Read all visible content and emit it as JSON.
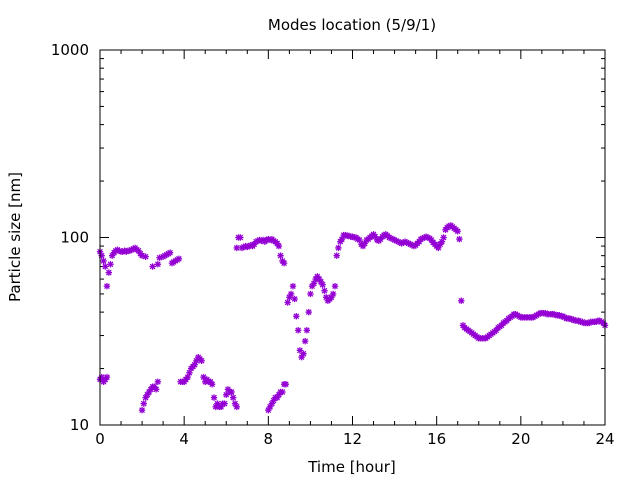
{
  "colors": {
    "series": "#9400d3",
    "axis": "#000000",
    "background": "#ffffff"
  },
  "chart_data": {
    "type": "scatter",
    "title": "Modes location (5/9/1)",
    "xlabel": "Time [hour]",
    "ylabel": "Particle size [nm]",
    "xlim": [
      0,
      24
    ],
    "ylim": [
      10,
      1000
    ],
    "yscale": "log",
    "grid": false,
    "legend": "none",
    "marker": "asterisk",
    "xticks": [
      0,
      4,
      8,
      12,
      16,
      20,
      24
    ],
    "xtick_labels": [
      "0",
      "4",
      "8",
      "12",
      "16",
      "20",
      "24"
    ],
    "yticks": [
      10,
      100,
      1000
    ],
    "ytick_labels": [
      "10",
      "100",
      "1000"
    ],
    "series": [
      {
        "x": [
          0.0,
          0.08,
          0.17,
          0.25,
          0.33,
          0.42,
          0.5,
          0.58,
          0.67,
          0.75,
          0.83,
          0.92,
          1.0,
          1.08,
          1.17,
          1.25,
          1.33,
          1.42,
          1.5,
          1.58,
          1.67,
          1.75,
          1.83,
          1.92,
          2.0,
          2.17,
          2.5,
          2.75,
          2.83,
          3.0,
          3.08,
          3.17,
          3.25,
          3.33,
          3.42,
          3.5,
          3.58,
          3.67,
          3.75,
          6.5,
          6.58,
          6.67,
          6.75,
          6.83,
          6.92,
          7.0,
          7.08,
          7.17,
          7.25,
          7.33,
          7.42,
          7.5,
          7.58,
          7.67,
          7.75,
          7.83,
          7.92,
          8.0,
          8.08,
          8.17,
          8.25,
          8.33,
          8.42,
          8.5,
          8.58,
          8.67,
          8.75,
          11.25,
          11.33,
          11.42,
          11.5,
          11.58,
          11.67,
          11.75,
          11.83,
          11.92,
          12.0,
          12.08,
          12.17,
          12.25,
          12.33,
          12.42,
          12.5,
          12.58,
          12.67,
          12.75,
          12.83,
          12.92,
          13.0,
          13.08,
          13.17,
          13.25,
          13.33,
          13.42,
          13.5,
          13.58,
          13.67,
          13.75,
          13.83,
          13.92,
          14.0,
          14.08,
          14.17,
          14.25,
          14.33,
          14.42,
          14.5,
          14.58,
          14.67,
          14.75,
          14.83,
          14.92,
          15.0,
          15.08,
          15.17,
          15.25,
          15.33,
          15.42,
          15.5,
          15.58,
          15.67,
          15.75,
          15.83,
          15.92,
          16.0,
          16.08,
          16.17,
          16.25,
          16.33,
          16.42,
          16.5,
          16.58,
          16.67,
          16.75,
          16.83,
          16.92,
          17.0,
          17.08
        ],
        "y": [
          84,
          80,
          75,
          70,
          55,
          65,
          72,
          80,
          83,
          85,
          86,
          85,
          84,
          84,
          85,
          84,
          85,
          85,
          86,
          87,
          88,
          86,
          85,
          82,
          80,
          79,
          70,
          72,
          78,
          79,
          80,
          81,
          82,
          83,
          73,
          74,
          75,
          76,
          77,
          88,
          100,
          100,
          88,
          89,
          90,
          89,
          90,
          91,
          90,
          92,
          95,
          96,
          97,
          96,
          97,
          95,
          97,
          98,
          97,
          98,
          96,
          95,
          93,
          90,
          80,
          75,
          73,
          80,
          88,
          95,
          98,
          103,
          103,
          102,
          102,
          101,
          101,
          100,
          100,
          98,
          97,
          92,
          90,
          93,
          97,
          98,
          100,
          102,
          104,
          101,
          97,
          96,
          98,
          101,
          103,
          104,
          102,
          100,
          99,
          98,
          97,
          96,
          95,
          94,
          93,
          94,
          95,
          94,
          93,
          92,
          91,
          90,
          91,
          93,
          95,
          98,
          99,
          100,
          101,
          100,
          99,
          97,
          94,
          92,
          90,
          88,
          92,
          95,
          100,
          110,
          113,
          115,
          116,
          114,
          112,
          110,
          108,
          98
        ]
      },
      {
        "x": [
          0.0,
          0.08,
          0.17,
          0.25,
          0.33,
          2.0,
          2.08,
          2.17,
          2.25,
          2.33,
          2.42,
          2.5,
          2.58,
          2.67,
          2.75,
          3.83,
          3.92,
          4.0,
          4.08,
          4.17,
          4.25,
          4.33,
          4.42,
          4.5,
          4.58,
          4.67,
          4.75,
          4.83,
          4.92,
          5.0,
          5.08,
          5.17,
          5.25,
          5.33,
          5.42,
          5.5,
          5.58,
          5.67,
          5.75,
          5.83,
          5.92,
          6.0,
          6.08,
          6.17,
          6.25,
          6.33,
          6.42,
          6.5,
          8.0,
          8.08,
          8.17,
          8.25,
          8.33,
          8.42,
          8.5,
          8.58,
          8.67,
          8.75,
          8.83,
          8.92,
          9.0,
          9.08,
          9.17,
          9.25,
          9.33,
          9.42,
          9.5,
          9.58,
          9.67,
          9.75,
          9.83,
          9.92,
          10.0,
          10.08,
          10.17,
          10.25,
          10.33,
          10.42,
          10.5,
          10.58,
          10.67,
          10.75,
          10.83,
          10.92,
          11.0,
          11.08,
          11.17
        ],
        "y": [
          17.5,
          18,
          17,
          17.5,
          18,
          12,
          13,
          14,
          14.5,
          15,
          15.5,
          16,
          16,
          15.5,
          17,
          17,
          17,
          17,
          17.5,
          18,
          19,
          20,
          20.5,
          21,
          22,
          23,
          22.5,
          22,
          18,
          17,
          17.5,
          17,
          17,
          16.5,
          14,
          12.5,
          13,
          12.5,
          12.5,
          13,
          13,
          14.5,
          15.5,
          15,
          15,
          14,
          13,
          12.5,
          12,
          12.5,
          13,
          13.5,
          14,
          14,
          14.5,
          15,
          15,
          16.5,
          16.5,
          45,
          48,
          50,
          55,
          47,
          38,
          32,
          25,
          23,
          24,
          28,
          32,
          40,
          50,
          55,
          57,
          60,
          62,
          60,
          58,
          56,
          52,
          48,
          46,
          47,
          48,
          50,
          55
        ]
      },
      {
        "x": [
          17.17,
          17.25,
          17.33,
          17.42,
          17.5,
          17.58,
          17.67,
          17.75,
          17.83,
          17.92,
          18.0,
          18.08,
          18.17,
          18.25,
          18.33,
          18.42,
          18.5,
          18.58,
          18.67,
          18.75,
          18.83,
          18.92,
          19.0,
          19.08,
          19.17,
          19.25,
          19.33,
          19.42,
          19.5,
          19.58,
          19.67,
          19.75,
          19.83,
          19.92,
          20.0,
          20.08,
          20.17,
          20.25,
          20.33,
          20.42,
          20.5,
          20.58,
          20.67,
          20.75,
          20.83,
          20.92,
          21.0,
          21.08,
          21.17,
          21.25,
          21.33,
          21.42,
          21.5,
          21.58,
          21.67,
          21.75,
          21.83,
          21.92,
          22.0,
          22.08,
          22.17,
          22.25,
          22.33,
          22.42,
          22.5,
          22.58,
          22.67,
          22.75,
          22.83,
          22.92,
          23.0,
          23.08,
          23.17,
          23.25,
          23.33,
          23.42,
          23.5,
          23.58,
          23.67,
          23.75,
          23.83,
          23.92,
          24.0
        ],
        "y": [
          46,
          34,
          33,
          32.5,
          32,
          31.5,
          31,
          30.5,
          30,
          29.5,
          29,
          29,
          29,
          29,
          29,
          29.5,
          30,
          30.5,
          31,
          31.5,
          32,
          33,
          33.5,
          34,
          35,
          35.5,
          36,
          37,
          37.5,
          38,
          39,
          39,
          38.5,
          38,
          37.5,
          37.5,
          37.5,
          37.5,
          37.5,
          37.5,
          37.5,
          37.5,
          38,
          38.5,
          39,
          39.5,
          39.5,
          39.5,
          39.5,
          39,
          39,
          39,
          39,
          39,
          38.5,
          38.5,
          38.5,
          38,
          38,
          37.5,
          37,
          37,
          37,
          36.5,
          36.5,
          36,
          36,
          36,
          35.5,
          35.5,
          35,
          35,
          35,
          35,
          35.5,
          35.5,
          35.5,
          35.5,
          36,
          36,
          35.5,
          35,
          34
        ]
      }
    ]
  }
}
